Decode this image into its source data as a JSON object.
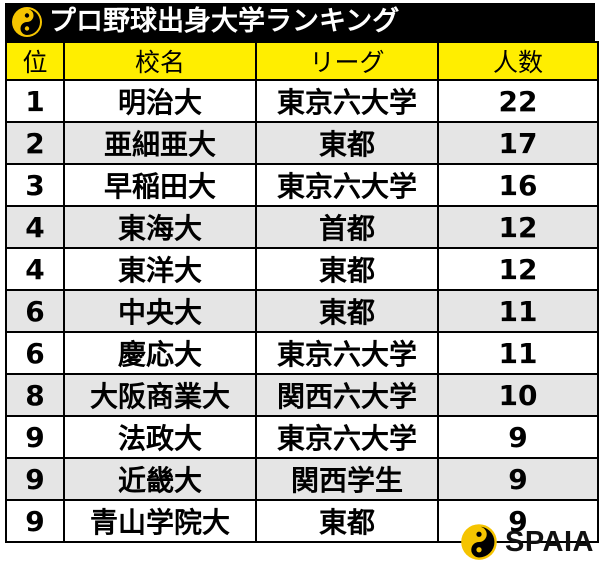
{
  "title": "プロ野球出身大学ランキング",
  "logo_icon": "spaia-swirl-icon",
  "colors": {
    "header_bg": "#ffee00",
    "title_bg": "#000000",
    "shade_row": "#e5e5e5",
    "logo_yellow": "#f5c400"
  },
  "table": {
    "headers": {
      "rank": "位",
      "school": "校名",
      "league": "リーグ",
      "count": "人数"
    },
    "rows": [
      {
        "rank": "1",
        "school": "明治大",
        "league": "東京六大学",
        "count": "22"
      },
      {
        "rank": "2",
        "school": "亜細亜大",
        "league": "東都",
        "count": "17"
      },
      {
        "rank": "3",
        "school": "早稲田大",
        "league": "東京六大学",
        "count": "16"
      },
      {
        "rank": "4",
        "school": "東海大",
        "league": "首都",
        "count": "12"
      },
      {
        "rank": "4",
        "school": "東洋大",
        "league": "東都",
        "count": "12"
      },
      {
        "rank": "6",
        "school": "中央大",
        "league": "東都",
        "count": "11"
      },
      {
        "rank": "6",
        "school": "慶応大",
        "league": "東京六大学",
        "count": "11"
      },
      {
        "rank": "8",
        "school": "大阪商業大",
        "league": "関西六大学",
        "count": "10"
      },
      {
        "rank": "9",
        "school": "法政大",
        "league": "東京六大学",
        "count": "9"
      },
      {
        "rank": "9",
        "school": "近畿大",
        "league": "関西学生",
        "count": "9"
      },
      {
        "rank": "9",
        "school": "青山学院大",
        "league": "東都",
        "count": "9"
      }
    ]
  },
  "brand": {
    "name": "SPAIA",
    "icon": "spaia-swirl-icon"
  }
}
